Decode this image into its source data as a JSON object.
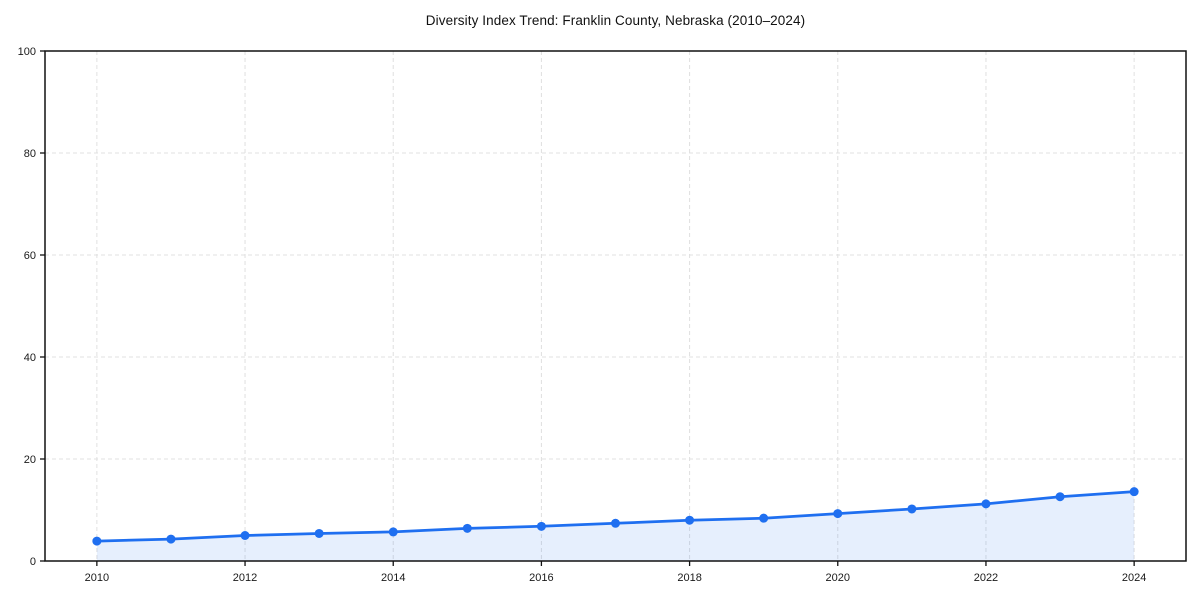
{
  "page": {
    "background": "#ffffff"
  },
  "chart_data": {
    "type": "line",
    "title": "Diversity Index Trend: Franklin County, Nebraska (2010–2024)",
    "x": [
      2010,
      2011,
      2012,
      2013,
      2014,
      2015,
      2016,
      2017,
      2018,
      2019,
      2020,
      2021,
      2022,
      2023,
      2024
    ],
    "series": [
      {
        "name": "Diversity Index",
        "values": [
          3.9,
          4.3,
          5.0,
          5.4,
          5.7,
          6.4,
          6.8,
          7.4,
          8.0,
          8.4,
          9.3,
          10.2,
          11.2,
          12.6,
          13.6
        ]
      }
    ],
    "xlabel": "",
    "ylabel": "",
    "xticks": [
      2010,
      2012,
      2014,
      2016,
      2018,
      2020,
      2022,
      2024
    ],
    "yticks": [
      0,
      20,
      40,
      60,
      80,
      100
    ],
    "xlim": [
      2009.3,
      2024.7
    ],
    "ylim": [
      0,
      100
    ],
    "grid": true,
    "grid_style": "dashed",
    "legend": "none",
    "area_fill": true,
    "marker": "circle",
    "colors": {
      "line": "#1f6ff0",
      "fill": "#1f6ff0",
      "fill_opacity": 0.11,
      "grid": "#e0e0e0",
      "axis": "#111111",
      "tick_text": "#1a1a1a",
      "title_text": "#111111"
    }
  }
}
